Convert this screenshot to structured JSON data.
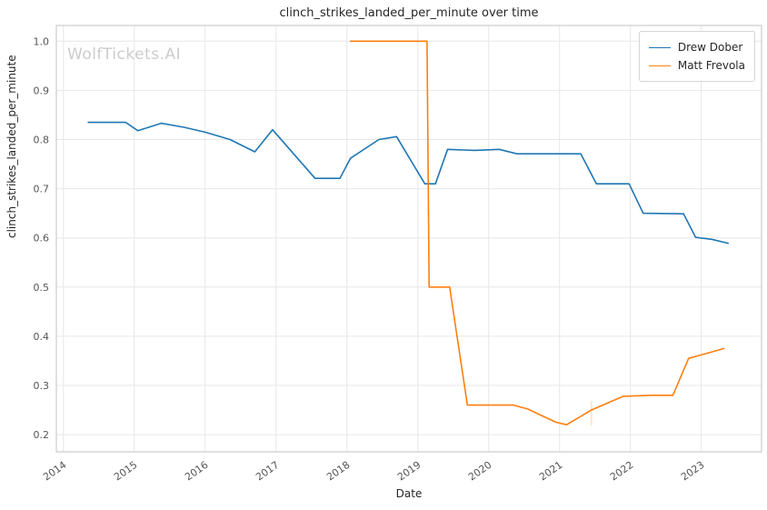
{
  "watermark": "WolfTickets.AI",
  "chart_data": {
    "type": "line",
    "title": "clinch_strikes_landed_per_minute over time",
    "xlabel": "Date",
    "ylabel": "clinch_strikes_landed_per_minute",
    "grid": true,
    "legend_position": "upper right",
    "x_ticks": [
      2014,
      2015,
      2016,
      2017,
      2018,
      2019,
      2020,
      2021,
      2022,
      2023
    ],
    "y_ticks": [
      0.2,
      0.3,
      0.4,
      0.5,
      0.6,
      0.7,
      0.8,
      0.9,
      1.0
    ],
    "x_range": [
      2013.9,
      2023.85
    ],
    "y_range": [
      0.165,
      1.032
    ],
    "series": [
      {
        "name": "Drew Dober",
        "color": "#1f77b4",
        "points": [
          [
            2014.35,
            0.835
          ],
          [
            2014.88,
            0.835
          ],
          [
            2015.05,
            0.818
          ],
          [
            2015.38,
            0.833
          ],
          [
            2015.7,
            0.825
          ],
          [
            2016.0,
            0.815
          ],
          [
            2016.35,
            0.8
          ],
          [
            2016.7,
            0.775
          ],
          [
            2016.95,
            0.82
          ],
          [
            2017.55,
            0.721
          ],
          [
            2017.9,
            0.721
          ],
          [
            2018.05,
            0.762
          ],
          [
            2018.45,
            0.8
          ],
          [
            2018.7,
            0.806
          ],
          [
            2019.1,
            0.71
          ],
          [
            2019.25,
            0.71
          ],
          [
            2019.42,
            0.78
          ],
          [
            2019.8,
            0.778
          ],
          [
            2020.15,
            0.78
          ],
          [
            2020.4,
            0.771
          ],
          [
            2021.3,
            0.771
          ],
          [
            2021.52,
            0.71
          ],
          [
            2021.98,
            0.71
          ],
          [
            2022.18,
            0.65
          ],
          [
            2022.75,
            0.649
          ],
          [
            2022.92,
            0.601
          ],
          [
            2023.15,
            0.597
          ],
          [
            2023.38,
            0.589
          ]
        ]
      },
      {
        "name": "Matt Frevola",
        "color": "#ff7f0e",
        "points": [
          [
            2018.05,
            1.0
          ],
          [
            2019.13,
            1.0
          ],
          [
            2019.16,
            0.5
          ],
          [
            2019.45,
            0.5
          ],
          [
            2019.7,
            0.26
          ],
          [
            2020.35,
            0.26
          ],
          [
            2020.55,
            0.252
          ],
          [
            2020.95,
            0.225
          ],
          [
            2021.1,
            0.22
          ],
          [
            2021.45,
            0.25
          ],
          [
            2021.9,
            0.278
          ],
          [
            2022.3,
            0.28
          ],
          [
            2022.6,
            0.28
          ],
          [
            2022.82,
            0.355
          ],
          [
            2023.0,
            0.362
          ],
          [
            2023.32,
            0.375
          ]
        ]
      }
    ],
    "faint_mark": {
      "x": 2021.45,
      "y1": 0.218,
      "y2": 0.268,
      "color": "#ffd9b3"
    },
    "style": {
      "grid_color": "#e7e7e7",
      "spine_color": "#cccccc",
      "tick_label_color": "#555555"
    }
  }
}
